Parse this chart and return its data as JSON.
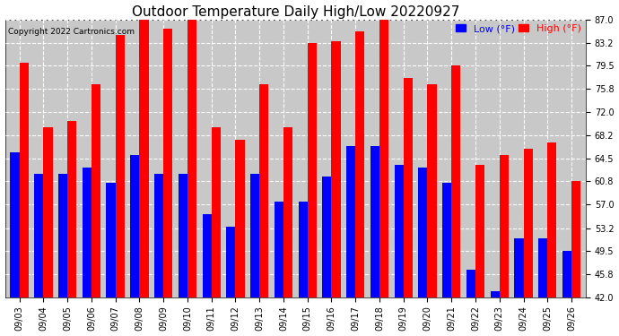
{
  "title": "Outdoor Temperature Daily High/Low 20220927",
  "copyright": "Copyright 2022 Cartronics.com",
  "legend_low": "Low (°F)",
  "legend_high": "High (°F)",
  "dates": [
    "09/03",
    "09/04",
    "09/05",
    "09/06",
    "09/07",
    "09/08",
    "09/09",
    "09/10",
    "09/11",
    "09/12",
    "09/13",
    "09/14",
    "09/15",
    "09/16",
    "09/17",
    "09/18",
    "09/19",
    "09/20",
    "09/21",
    "09/22",
    "09/23",
    "09/24",
    "09/25",
    "09/26"
  ],
  "highs": [
    80.0,
    69.5,
    70.5,
    76.5,
    84.5,
    87.5,
    85.5,
    87.0,
    69.5,
    67.5,
    76.5,
    69.5,
    83.2,
    83.5,
    85.0,
    87.0,
    77.5,
    76.5,
    79.5,
    63.5,
    65.0,
    66.0,
    67.0,
    60.8
  ],
  "lows": [
    65.5,
    62.0,
    62.0,
    63.0,
    60.5,
    65.0,
    62.0,
    62.0,
    55.5,
    53.5,
    62.0,
    57.5,
    57.5,
    61.5,
    66.5,
    66.5,
    63.5,
    63.0,
    60.5,
    46.5,
    43.0,
    51.5,
    51.5,
    49.5
  ],
  "ylim_min": 42.0,
  "ylim_max": 87.0,
  "yticks": [
    42.0,
    45.8,
    49.5,
    53.2,
    57.0,
    60.8,
    64.5,
    68.2,
    72.0,
    75.8,
    79.5,
    83.2,
    87.0
  ],
  "bar_width": 0.38,
  "low_color": "#0000ff",
  "high_color": "#ff0000",
  "bg_color": "#ffffff",
  "plot_bg_color": "#c8c8c8",
  "title_fontsize": 11,
  "tick_fontsize": 7,
  "copyright_fontsize": 6.5,
  "legend_fontsize": 8
}
